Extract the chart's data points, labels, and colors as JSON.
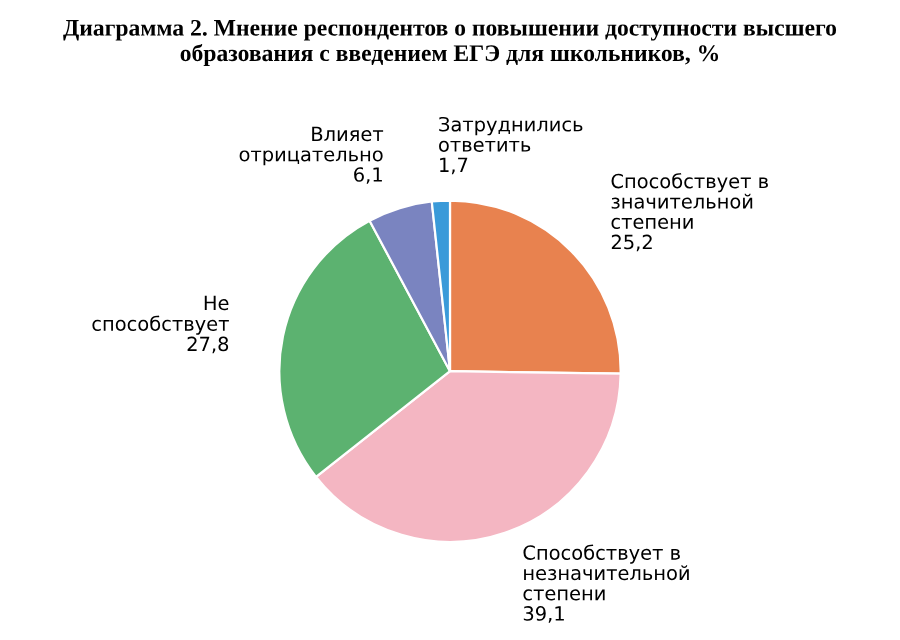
{
  "chart_data": {
    "type": "pie",
    "title": "Диаграмма 2. Мнение респондентов о повышении доступности высшего образования с введением ЕГЭ для школьников, %",
    "categories": [
      "Способствует в значительной степени",
      "Способствует в незначительной степени",
      "Не способствует",
      "Влияет отрицательно",
      "Затруднились ответить"
    ],
    "values": [
      25.2,
      39.1,
      27.8,
      6.1,
      1.7
    ],
    "value_labels": [
      "25,2",
      "39,1",
      "27,8",
      "6,1",
      "1,7"
    ],
    "colors": [
      "#e8824f",
      "#f4b6c2",
      "#5cb270",
      "#7a84c0",
      "#3a9ad9"
    ]
  }
}
